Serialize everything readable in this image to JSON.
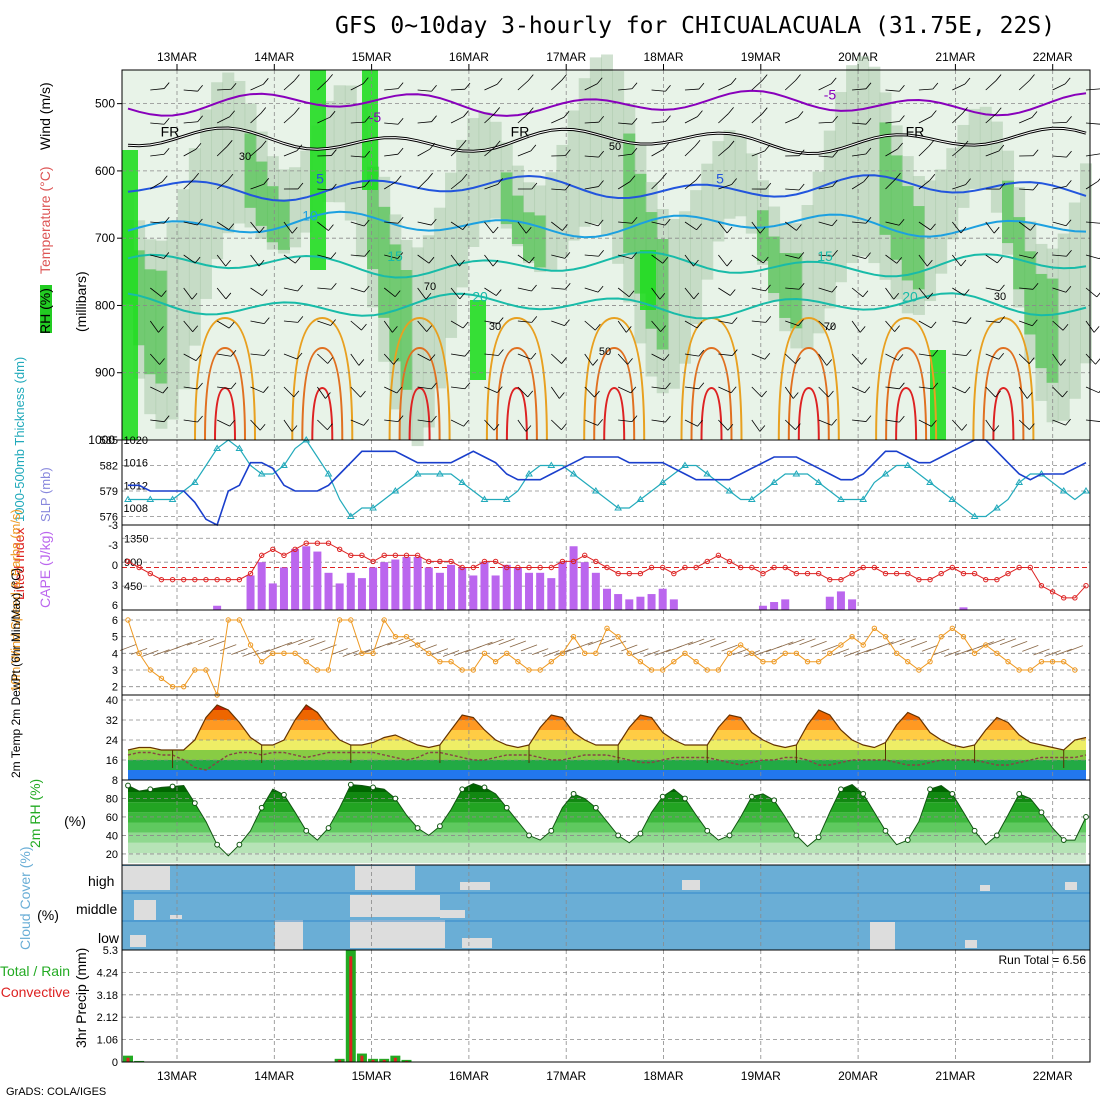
{
  "title": "GFS 0~10day 3-hourly for CHICUALACUALA (31.75E, 22S)",
  "credit": "GrADS: COLA/IGES",
  "colors": {
    "rh_green": "#22cc22",
    "rh_light": "#e6f2e6",
    "temp_purple": "#8800bb",
    "temp_blue": "#2255dd",
    "temp_lightblue": "#1ca0e0",
    "temp_teal": "#18bba8",
    "slp": "#1a3fcc",
    "thickness": "#22aabb",
    "lifted": "#dd2222",
    "cape": "#bb66ee",
    "wind10": "#ee9922",
    "cloud": "#6aaed6",
    "precip_total": "#22aa22",
    "precip_conv": "#dd2222"
  },
  "chart_data": [
    {
      "type": "contour",
      "name": "upper-air-cross-section",
      "ylabel_parts": [
        "RH (%)",
        "Temperature (°C)",
        "Wind (m/s)"
      ],
      "ylabel_units": "(millibars)",
      "x": [
        "13MAR",
        "14MAR",
        "15MAR",
        "16MAR",
        "17MAR",
        "18MAR",
        "19MAR",
        "20MAR",
        "21MAR",
        "22MAR"
      ],
      "y_ticks": [
        500,
        600,
        700,
        800,
        900,
        1000
      ],
      "ylim": [
        450,
        1000
      ],
      "temperature_contours": [
        {
          "label": "-5",
          "level_mb": 500
        },
        {
          "label": "FR",
          "level_mb": 555
        },
        {
          "label": "5",
          "level_mb": 625
        },
        {
          "label": "10",
          "level_mb": 680
        },
        {
          "label": "15",
          "level_mb": 740
        },
        {
          "label": "20",
          "level_mb": 800
        }
      ],
      "rh_labels": [
        "30",
        "50",
        "70"
      ]
    },
    {
      "type": "line",
      "name": "slp-thickness",
      "ylabel_left": "1000-500mb Thickness (dm)",
      "ylabel_right": "SLP (mb)",
      "left_ticks": [
        576,
        579,
        582,
        585
      ],
      "right_ticks": [
        1008,
        1012,
        1016,
        1020
      ],
      "series": [
        {
          "name": "SLP (mb)",
          "values": [
            1012,
            1012,
            1011,
            1011,
            1011,
            1011,
            1009,
            1006,
            1005,
            1011,
            1012,
            1016,
            1016,
            1015,
            1012,
            1011,
            1011,
            1011,
            1012,
            1014,
            1016,
            1018,
            1018,
            1018,
            1018,
            1017,
            1016,
            1016,
            1016,
            1016,
            1017,
            1018,
            1017,
            1016,
            1014,
            1013,
            1013,
            1013,
            1014,
            1015,
            1016,
            1017,
            1017,
            1017,
            1017,
            1016,
            1016,
            1016,
            1016,
            1015,
            1014,
            1013,
            1013,
            1013,
            1013,
            1014,
            1015,
            1016,
            1017,
            1017,
            1017,
            1016,
            1015,
            1014,
            1013,
            1013,
            1014,
            1016,
            1018,
            1018,
            1017,
            1016,
            1016,
            1017,
            1018,
            1019,
            1020,
            1020,
            1018,
            1016,
            1014,
            1013,
            1014,
            1014,
            1014,
            1015,
            1016
          ]
        },
        {
          "name": "Thickness (dm)",
          "values": [
            578,
            578,
            578,
            578,
            578,
            579,
            580,
            582,
            584,
            585,
            584,
            582,
            581,
            581,
            582,
            584,
            585,
            583,
            581,
            578,
            576,
            577,
            577,
            578,
            579,
            580,
            581,
            581,
            581,
            581,
            580,
            579,
            578,
            578,
            578,
            579,
            581,
            582,
            582,
            582,
            581,
            580,
            579,
            578,
            577,
            577,
            578,
            579,
            580,
            581,
            582,
            582,
            581,
            580,
            579,
            578,
            578,
            579,
            580,
            581,
            581,
            581,
            580,
            579,
            578,
            578,
            578,
            580,
            581,
            582,
            582,
            581,
            580,
            579,
            578,
            577,
            576,
            576,
            577,
            578,
            580,
            581,
            581,
            580,
            579,
            578,
            579
          ]
        }
      ]
    },
    {
      "type": "bar",
      "name": "lifted-index-cape",
      "ylabel_left": "Lifted Index",
      "ylabel_right": "CAPE (J/kg)",
      "left_ticks": [
        "-3",
        "-3",
        "0",
        "3",
        "6"
      ],
      "right_ticks": [
        1350,
        900,
        450
      ],
      "series": [
        {
          "name": "CAPE (J/kg)",
          "values": [
            0,
            0,
            0,
            0,
            0,
            0,
            0,
            0,
            80,
            0,
            0,
            650,
            900,
            500,
            800,
            1150,
            1200,
            1100,
            700,
            500,
            700,
            600,
            800,
            900,
            950,
            1000,
            1000,
            800,
            700,
            850,
            800,
            650,
            900,
            650,
            850,
            800,
            700,
            700,
            600,
            900,
            1200,
            900,
            700,
            400,
            300,
            200,
            250,
            300,
            400,
            200,
            0,
            0,
            0,
            0,
            0,
            0,
            0,
            80,
            150,
            200,
            0,
            0,
            0,
            250,
            350,
            200,
            0,
            0,
            0,
            0,
            0,
            0,
            0,
            0,
            0,
            50,
            0,
            0,
            0,
            0,
            0,
            0,
            0,
            0,
            0,
            0
          ]
        },
        {
          "name": "Lifted Index",
          "values": [
            -1,
            0,
            1,
            2,
            2,
            2,
            2,
            2,
            2,
            2,
            2,
            1,
            -2,
            -3,
            -2,
            -3,
            -4,
            -4,
            -4,
            -3,
            -2,
            -2,
            -1,
            -2,
            -2,
            -2,
            -2,
            -1,
            -1,
            -1,
            0,
            0,
            -1,
            -1,
            0,
            0,
            0,
            0,
            0,
            -1,
            -1,
            -2,
            -1,
            0,
            1,
            1,
            1,
            0,
            0,
            1,
            0,
            0,
            -1,
            -2,
            -1,
            0,
            0,
            1,
            0,
            0,
            1,
            1,
            1,
            2,
            2,
            1,
            0,
            0,
            1,
            1,
            1,
            2,
            2,
            1,
            0,
            1,
            1,
            2,
            2,
            1,
            0,
            0,
            3,
            4,
            5,
            5,
            3
          ]
        }
      ]
    },
    {
      "type": "line",
      "name": "wind-10m",
      "ylabel": "10m Wind Speed & Barbs (m/s)",
      "y_ticks": [
        2,
        3,
        4,
        5,
        6
      ],
      "ylim": [
        1.5,
        6.6
      ],
      "series": [
        {
          "name": "10m wind speed (m/s)",
          "values": [
            6,
            4,
            3,
            2.5,
            2,
            2,
            3,
            3,
            1.5,
            6,
            6,
            4.5,
            3.5,
            4,
            4,
            4,
            3.5,
            3,
            3,
            6,
            6,
            4,
            4,
            6,
            5,
            5,
            4.5,
            4,
            3.5,
            3.5,
            3,
            3,
            4,
            3.5,
            4,
            3.5,
            3,
            3,
            3.5,
            4,
            5,
            4,
            4,
            5.5,
            5,
            4,
            3.5,
            3,
            3,
            3.5,
            4,
            3.5,
            3,
            3,
            4,
            4.5,
            4,
            3.5,
            3.5,
            4,
            4,
            3.5,
            3.5,
            4,
            4.5,
            5,
            4.5,
            5.5,
            5,
            4,
            3.5,
            3,
            3.5,
            5,
            5.5,
            5,
            4,
            4.5,
            4,
            3.5,
            3,
            3,
            3.5,
            3.5,
            3.5,
            3
          ]
        }
      ]
    },
    {
      "type": "area",
      "name": "temperature-2m",
      "ylabel": "2m Temp 2m DewPt (6hr Min/Max) (°C)",
      "y_ticks": [
        8,
        16,
        24,
        32,
        40
      ],
      "ylim": [
        8,
        42
      ],
      "series": [
        {
          "name": "2m Temp (°C)",
          "values": [
            20,
            21,
            21,
            20,
            20,
            20,
            24,
            33,
            38,
            36,
            31,
            25,
            22,
            22,
            24,
            32,
            38,
            35,
            29,
            24,
            22,
            22,
            23,
            25,
            26,
            24,
            22,
            21,
            22,
            28,
            34,
            33,
            28,
            24,
            22,
            21,
            22,
            29,
            34,
            33,
            27,
            24,
            22,
            22,
            22,
            29,
            34,
            33,
            27,
            24,
            22,
            22,
            22,
            29,
            34,
            33,
            27,
            24,
            22,
            21,
            22,
            30,
            36,
            34,
            28,
            24,
            22,
            21,
            23,
            30,
            35,
            33,
            27,
            24,
            22,
            21,
            22,
            28,
            33,
            31,
            26,
            23,
            22,
            21,
            20,
            24,
            25
          ]
        },
        {
          "name": "2m DewPt (°C)",
          "values": [
            18,
            19,
            19,
            18,
            18,
            16,
            13,
            12,
            15,
            18,
            19,
            19,
            18,
            19,
            19,
            18,
            17,
            18,
            19,
            19,
            19,
            19,
            19,
            18,
            17,
            16,
            17,
            19,
            19,
            18,
            17,
            16,
            16,
            17,
            18,
            18,
            18,
            17,
            16,
            16,
            17,
            18,
            18,
            18,
            17,
            16,
            15,
            15,
            16,
            17,
            17,
            17,
            17,
            16,
            15,
            14,
            15,
            16,
            16,
            17,
            17,
            16,
            14,
            14,
            15,
            16,
            16,
            16,
            16,
            15,
            14,
            14,
            15,
            16,
            16,
            16,
            16,
            15,
            14,
            14,
            15,
            16,
            17,
            17,
            17,
            17,
            18
          ]
        }
      ]
    },
    {
      "type": "area",
      "name": "relative-humidity-2m",
      "ylabel": "2m RH (%)",
      "y_ticks": [
        20,
        40,
        60,
        80
      ],
      "ylim": [
        8,
        100
      ],
      "series": [
        {
          "name": "2m RH (%)",
          "values": [
            94,
            88,
            90,
            92,
            93,
            94,
            75,
            55,
            30,
            18,
            30,
            45,
            70,
            90,
            84,
            65,
            45,
            35,
            48,
            70,
            95,
            94,
            92,
            90,
            80,
            62,
            48,
            40,
            50,
            68,
            90,
            96,
            92,
            85,
            70,
            55,
            40,
            35,
            45,
            70,
            85,
            80,
            70,
            55,
            40,
            32,
            42,
            65,
            82,
            90,
            80,
            62,
            45,
            35,
            40,
            60,
            82,
            85,
            78,
            60,
            40,
            28,
            38,
            65,
            90,
            95,
            85,
            65,
            45,
            30,
            35,
            55,
            90,
            94,
            85,
            65,
            45,
            30,
            40,
            62,
            85,
            80,
            65,
            48,
            35,
            35,
            60
          ]
        }
      ]
    },
    {
      "type": "heatmap",
      "name": "cloud-cover",
      "ylabel": "Cloud Cover (%)",
      "levels": [
        "high",
        "middle",
        "low"
      ]
    },
    {
      "type": "bar",
      "name": "precipitation-3hr",
      "ylabel": "3hr Precip (mm)",
      "legend": [
        "Total / Rain",
        "Convective"
      ],
      "y_ticks": [
        "0",
        "1.06",
        "2.12",
        "3.18",
        "4.24",
        "5.3"
      ],
      "ylim": [
        0,
        5.3
      ],
      "run_total": "Run Total = 6.56",
      "series": [
        {
          "name": "Total / Rain",
          "values": [
            0.3,
            0.05,
            0,
            0,
            0,
            0,
            0,
            0,
            0,
            0,
            0,
            0,
            0,
            0,
            0,
            0,
            0,
            0,
            0,
            0.15,
            5.3,
            0.4,
            0.15,
            0.15,
            0.3,
            0.1,
            0,
            0,
            0,
            0,
            0,
            0,
            0,
            0,
            0,
            0,
            0,
            0,
            0,
            0,
            0,
            0,
            0,
            0,
            0,
            0,
            0,
            0,
            0,
            0,
            0,
            0,
            0,
            0,
            0,
            0,
            0,
            0,
            0,
            0,
            0,
            0,
            0,
            0,
            0,
            0,
            0,
            0,
            0,
            0,
            0,
            0,
            0,
            0,
            0,
            0,
            0,
            0,
            0,
            0,
            0,
            0,
            0,
            0,
            0,
            0,
            0
          ]
        },
        {
          "name": "Convective",
          "values": [
            0.2,
            0,
            0,
            0,
            0,
            0,
            0,
            0,
            0,
            0,
            0,
            0,
            0,
            0,
            0,
            0,
            0,
            0,
            0,
            0.1,
            5.0,
            0.3,
            0.1,
            0.1,
            0.2,
            0.05,
            0,
            0,
            0,
            0,
            0,
            0,
            0,
            0,
            0,
            0,
            0,
            0,
            0,
            0,
            0,
            0,
            0,
            0,
            0,
            0,
            0,
            0,
            0,
            0,
            0,
            0,
            0,
            0,
            0,
            0,
            0,
            0,
            0,
            0,
            0,
            0,
            0,
            0,
            0,
            0,
            0,
            0,
            0,
            0,
            0,
            0,
            0,
            0,
            0,
            0,
            0,
            0,
            0,
            0,
            0,
            0,
            0,
            0,
            0,
            0
          ]
        }
      ]
    }
  ]
}
